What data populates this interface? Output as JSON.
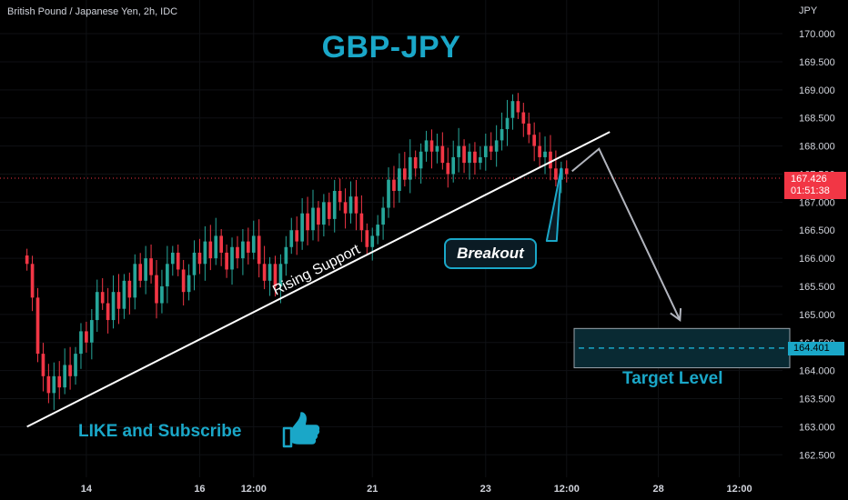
{
  "header": {
    "symbol_line": "British Pound / Japanese Yen, 2h, IDC",
    "title": "GBP-JPY"
  },
  "annotations": {
    "trendline_label": "Rising Support",
    "breakout_label": "Breakout",
    "target_label": "Target Level",
    "cta": "LIKE and Subscribe"
  },
  "price_axis": {
    "currency": "JPY",
    "current_price": "167.426",
    "countdown": "01:51:38",
    "target_price": "164.401"
  },
  "colors": {
    "up": "#26a69a",
    "down": "#f23645",
    "accent": "#1aa7c8",
    "background": "#000000"
  },
  "icons": {
    "cta_icon": "thumbs-up-icon"
  },
  "chart_data": {
    "type": "candlestick",
    "title": "GBP-JPY",
    "symbol": "British Pound / Japanese Yen, 2h, IDC",
    "ylim": [
      162.1,
      170.6
    ],
    "y_ticks": [
      "170.000",
      "169.500",
      "169.000",
      "168.500",
      "168.000",
      "167.500",
      "167.000",
      "166.500",
      "166.000",
      "165.500",
      "165.000",
      "164.500",
      "164.000",
      "163.500",
      "163.000",
      "162.500"
    ],
    "x_ticks": [
      {
        "label": "14",
        "index": 11
      },
      {
        "label": "16",
        "index": 32
      },
      {
        "label": "12:00",
        "index": 42
      },
      {
        "label": "21",
        "index": 64
      },
      {
        "label": "23",
        "index": 85
      },
      {
        "label": "12:00",
        "index": 100
      },
      {
        "label": "28",
        "index": 117
      },
      {
        "label": "12:00",
        "index": 132
      }
    ],
    "x_range": [
      -5,
      140
    ],
    "current_price": 167.426,
    "target_level": 164.401,
    "target_zone": [
      164.05,
      164.75
    ],
    "rising_support": {
      "from": {
        "index": 0,
        "price": 163.0
      },
      "to": {
        "index": 108,
        "price": 168.25
      }
    },
    "projection": [
      {
        "index": 101,
        "price": 167.55
      },
      {
        "index": 106,
        "price": 167.95
      },
      {
        "index": 121,
        "price": 164.9
      }
    ],
    "breakout_point": {
      "index": 99,
      "price": 167.6
    },
    "closes": [
      165.9,
      165.3,
      164.3,
      163.9,
      163.6,
      163.9,
      163.7,
      164.1,
      163.9,
      164.3,
      164.7,
      164.5,
      164.9,
      165.4,
      165.2,
      164.9,
      165.4,
      165.1,
      165.6,
      165.3,
      165.9,
      165.6,
      166.0,
      165.7,
      165.2,
      165.5,
      165.9,
      166.1,
      165.8,
      165.4,
      165.7,
      166.1,
      165.9,
      166.3,
      166.0,
      166.4,
      166.1,
      165.8,
      166.2,
      166.0,
      166.3,
      166.1,
      166.4,
      165.9,
      165.6,
      165.9,
      165.5,
      165.9,
      166.2,
      166.5,
      166.3,
      166.8,
      166.5,
      166.9,
      166.6,
      167.0,
      166.7,
      167.2,
      167.0,
      166.8,
      167.1,
      166.8,
      166.5,
      166.2,
      166.4,
      166.6,
      166.9,
      167.4,
      167.2,
      167.6,
      167.4,
      167.8,
      167.6,
      167.9,
      168.1,
      167.9,
      168.0,
      167.7,
      167.5,
      167.8,
      168.0,
      167.7,
      167.9,
      167.7,
      167.8,
      168.0,
      167.9,
      168.1,
      168.3,
      168.5,
      168.8,
      168.6,
      168.4,
      168.2,
      168.0,
      167.8,
      167.9,
      167.6,
      167.4,
      167.6,
      167.5
    ]
  }
}
